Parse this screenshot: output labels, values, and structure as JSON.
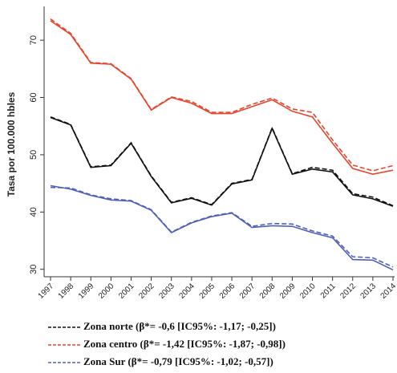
{
  "chart_data": {
    "type": "line",
    "y_label": "Tasa por 100.000 hbles",
    "categories": [
      "1997",
      "1998",
      "1999",
      "2000",
      "2001",
      "2002",
      "2003",
      "2004",
      "2005",
      "2006",
      "2007",
      "2008",
      "2009",
      "2010",
      "2011",
      "2012",
      "2013",
      "2014"
    ],
    "ylim": [
      28.7,
      75.9
    ],
    "yticks": [
      30,
      40,
      50,
      60,
      70
    ],
    "series": [
      {
        "color": "#111111",
        "style": "solid",
        "values": [
          56.5,
          55.2,
          47.8,
          48.1,
          52.0,
          46.2,
          41.6,
          42.4,
          41.2,
          44.9,
          45.6,
          54.6,
          46.6,
          47.5,
          47.0,
          43.0,
          42.3,
          41.0
        ]
      },
      {
        "name": "Zona norte (β*= -0,6 [IC95%:  -1,17; -0,25])",
        "color": "#111111",
        "style": "dashed",
        "values": [
          56.6,
          55.3,
          47.9,
          48.2,
          52.1,
          46.3,
          41.7,
          42.5,
          41.3,
          45.0,
          45.7,
          54.7,
          46.7,
          47.8,
          47.3,
          43.2,
          42.6,
          41.1
        ]
      },
      {
        "color": "#e8452c",
        "style": "solid",
        "values": [
          73.4,
          71.0,
          66.0,
          65.8,
          63.2,
          57.8,
          60.0,
          59.0,
          57.2,
          57.2,
          58.4,
          59.6,
          57.6,
          56.6,
          52.0,
          47.6,
          46.6,
          47.3
        ]
      },
      {
        "name": "Zona centro (β*= -1,42 [IC95%: -1,87; -0,98])",
        "color": "#e8452c",
        "style": "dashed",
        "values": [
          73.7,
          71.2,
          66.1,
          65.9,
          63.3,
          57.9,
          60.1,
          59.3,
          57.4,
          57.4,
          58.8,
          59.9,
          58.0,
          57.4,
          52.6,
          48.2,
          47.2,
          48.1
        ]
      },
      {
        "color": "#5060b8",
        "style": "solid",
        "values": [
          44.6,
          44.0,
          42.9,
          42.1,
          41.9,
          40.3,
          36.4,
          38.1,
          39.2,
          39.8,
          37.3,
          37.6,
          37.5,
          36.4,
          35.5,
          31.7,
          31.6,
          29.9
        ]
      },
      {
        "name": "Zona Sur (β*= -0,79 [IC95%: -1,02; -0,57])",
        "color": "#5060b8",
        "style": "dashed",
        "values": [
          44.3,
          44.2,
          43.0,
          42.3,
          42.0,
          40.4,
          36.5,
          38.2,
          39.3,
          39.9,
          37.5,
          38.0,
          37.9,
          36.7,
          35.8,
          32.2,
          32.0,
          30.4
        ]
      }
    ]
  }
}
